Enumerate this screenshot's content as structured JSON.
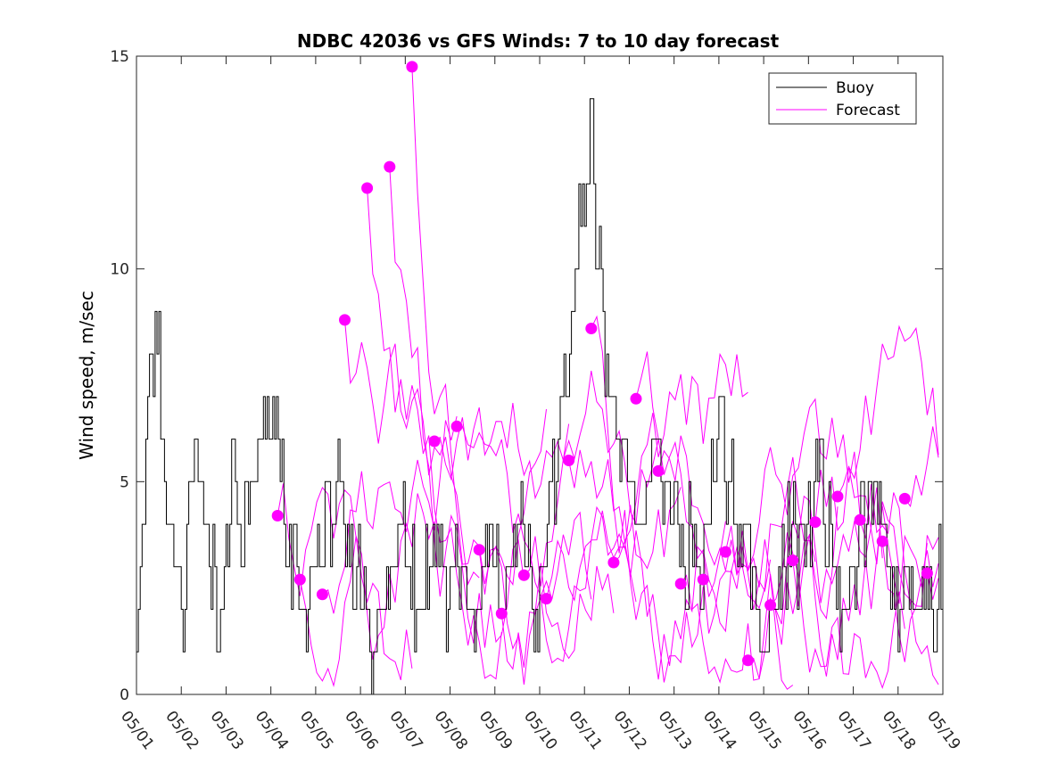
{
  "chart_data": {
    "type": "line",
    "title": "NDBC 42036 vs GFS Winds: 7 to 10 day forecast",
    "xlabel": "",
    "ylabel": "Wind speed, m/sec",
    "xlim": [
      0,
      18
    ],
    "ylim": [
      0,
      15
    ],
    "x_ticks": [
      "05/01",
      "05/02",
      "05/03",
      "05/04",
      "05/05",
      "05/06",
      "05/07",
      "05/08",
      "05/09",
      "05/10",
      "05/11",
      "05/12",
      "05/13",
      "05/14",
      "05/15",
      "05/16",
      "05/17",
      "05/18",
      "05/19"
    ],
    "y_ticks": [
      0,
      5,
      10,
      15
    ],
    "grid": false,
    "legend": {
      "position": "top-right",
      "entries": [
        {
          "label": "Buoy",
          "color": "#000000"
        },
        {
          "label": "Forecast",
          "color": "#ff00ff"
        }
      ]
    },
    "colors": {
      "buoy": "#000000",
      "forecast": "#ff00ff"
    },
    "buoy_anchor_days": [
      0,
      0.1,
      0.3,
      0.45,
      0.55,
      0.7,
      0.9,
      1.05,
      1.2,
      1.35,
      1.5,
      1.7,
      1.85,
      2.0,
      2.2,
      2.4,
      2.6,
      2.8,
      2.95,
      3.1,
      3.3,
      3.5,
      3.7,
      3.9,
      4.1,
      4.3,
      4.5,
      4.7,
      4.9,
      5.1,
      5.3,
      5.5,
      5.7,
      5.9,
      6.1,
      6.3,
      6.5,
      6.7,
      6.9,
      7.1,
      7.3,
      7.5,
      7.7,
      7.9,
      8.1,
      8.3,
      8.5,
      8.7,
      8.9,
      9.1,
      9.3,
      9.5,
      9.7,
      9.85,
      10.0,
      10.15,
      10.3,
      10.45,
      10.6,
      10.8,
      11.0,
      11.2,
      11.4,
      11.6,
      11.8,
      12.0,
      12.2,
      12.4,
      12.6,
      12.8,
      13.0,
      13.2,
      13.4,
      13.6,
      13.8,
      14.0,
      14.2,
      14.4,
      14.6,
      14.8,
      15.0,
      15.2,
      15.4,
      15.6,
      15.8,
      16.0,
      16.2,
      16.4,
      16.6,
      16.8,
      17.0,
      17.2,
      17.4,
      17.6,
      17.8,
      18.0
    ],
    "buoy_anchor_values": [
      1,
      3,
      7,
      9,
      6,
      4,
      3,
      1,
      5,
      6,
      4,
      3,
      2,
      4,
      5,
      4,
      5,
      6,
      7,
      6,
      4,
      3,
      2,
      3,
      3,
      4,
      5,
      4,
      3,
      2,
      1,
      2,
      3,
      4,
      3,
      2,
      3,
      4,
      2,
      3,
      3,
      1,
      3,
      4,
      2,
      3,
      4,
      3,
      2,
      3,
      5,
      7,
      9,
      11,
      12,
      13,
      10,
      8,
      7,
      6,
      5,
      4,
      5,
      6,
      5,
      4,
      3,
      4,
      3,
      5,
      6,
      5,
      4,
      3,
      2,
      1,
      2,
      3,
      4,
      3,
      4,
      5,
      4,
      3,
      2,
      3,
      4,
      5,
      4,
      3,
      2,
      3,
      2,
      3,
      2,
      3
    ],
    "forecast_markers": [
      {
        "x": 3.15,
        "y": 4.2
      },
      {
        "x": 3.65,
        "y": 2.7
      },
      {
        "x": 4.15,
        "y": 2.35
      },
      {
        "x": 4.65,
        "y": 8.8
      },
      {
        "x": 5.15,
        "y": 11.9
      },
      {
        "x": 5.65,
        "y": 12.4
      },
      {
        "x": 6.15,
        "y": 14.75
      },
      {
        "x": 6.65,
        "y": 5.95
      },
      {
        "x": 7.15,
        "y": 6.3
      },
      {
        "x": 7.65,
        "y": 3.4
      },
      {
        "x": 8.15,
        "y": 1.9
      },
      {
        "x": 8.65,
        "y": 2.8
      },
      {
        "x": 9.15,
        "y": 2.25
      },
      {
        "x": 9.65,
        "y": 5.5
      },
      {
        "x": 10.15,
        "y": 8.6
      },
      {
        "x": 10.65,
        "y": 3.1
      },
      {
        "x": 11.15,
        "y": 6.95
      },
      {
        "x": 11.65,
        "y": 5.25
      },
      {
        "x": 12.15,
        "y": 2.6
      },
      {
        "x": 12.65,
        "y": 2.7
      },
      {
        "x": 13.15,
        "y": 3.35
      },
      {
        "x": 13.65,
        "y": 0.8
      },
      {
        "x": 14.15,
        "y": 2.1
      },
      {
        "x": 14.65,
        "y": 3.15
      },
      {
        "x": 15.15,
        "y": 4.05
      },
      {
        "x": 15.65,
        "y": 4.65
      },
      {
        "x": 16.15,
        "y": 4.1
      },
      {
        "x": 16.65,
        "y": 3.6
      },
      {
        "x": 17.15,
        "y": 4.6
      },
      {
        "x": 17.65,
        "y": 2.85
      }
    ]
  }
}
